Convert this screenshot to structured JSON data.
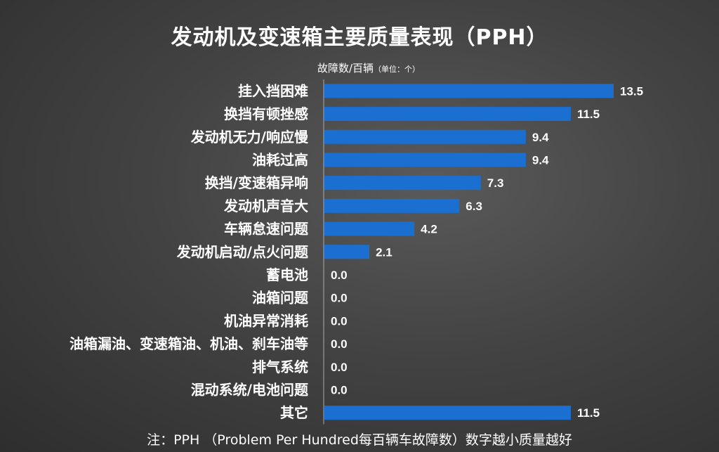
{
  "chart_data": {
    "type": "bar",
    "orientation": "horizontal",
    "title": "发动机及变速箱主要质量表现（PPH）",
    "ylabel": "故障数/百辆",
    "ylabel_unit": "（单位：个）",
    "categories": [
      "挂入挡困难",
      "换挡有顿挫感",
      "发动机无力/响应慢",
      "油耗过高",
      "换挡/变速箱异响",
      "发动机声音大",
      "车辆怠速问题",
      "发动机启动/点火问题",
      "蓄电池",
      "油箱问题",
      "机油异常消耗",
      "油箱漏油、变速箱油、机油、刹车油等",
      "排气系统",
      "混动系统/电池问题",
      "其它"
    ],
    "values": [
      13.5,
      11.5,
      9.4,
      9.4,
      7.3,
      6.3,
      4.2,
      2.1,
      0.0,
      0.0,
      0.0,
      0.0,
      0.0,
      0.0,
      11.5
    ],
    "value_labels": [
      "13.5",
      "11.5",
      "9.4",
      "9.4",
      "7.3",
      "6.3",
      "4.2",
      "2.1",
      "0.0",
      "0.0",
      "0.0",
      "0.0",
      "0.0",
      "0.0",
      "11.5"
    ],
    "xlim": [
      0,
      13.5
    ],
    "bar_color": "#1a6fd0",
    "grid": false,
    "legend": "none",
    "footnote": "注：PPH （Problem Per Hundred每百辆车故障数）数字越小质量越好"
  }
}
